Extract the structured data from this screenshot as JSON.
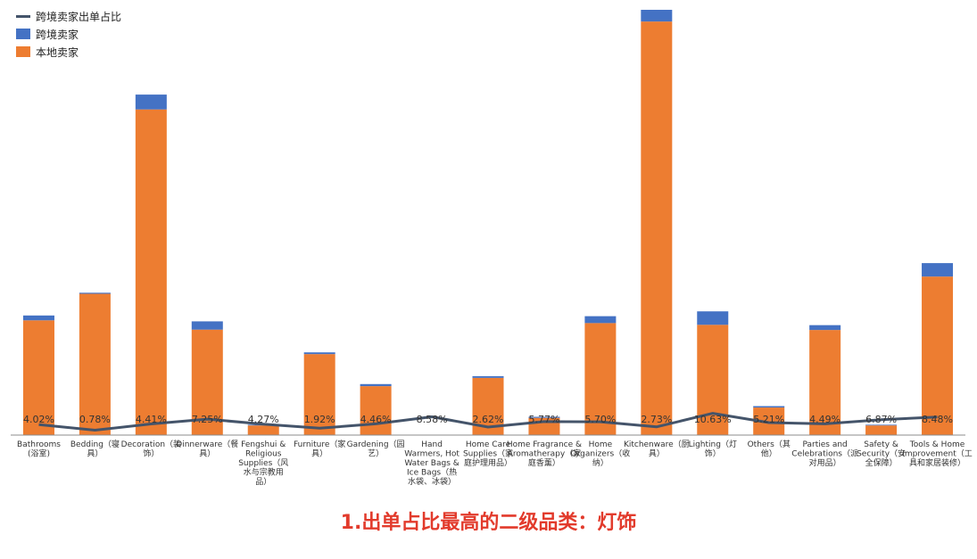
{
  "chart_data": {
    "type": "bar",
    "stacked": true,
    "categories": [
      "Bathrooms（浴室）",
      "Bedding（寝具）",
      "Decoration（装饰）",
      "Dinnerware（餐具）",
      "Fengshui & Religious Supplies（风水与宗教用品）",
      "Furniture（家具）",
      "Gardening（园艺）",
      "Hand Warmers, Hot Water Bags & Ice Bags（热水袋、冰袋）",
      "Home Care Supplies（家庭护理用品）",
      "Home Fragrance & Aromatherapy（家庭香薰）",
      "Home Organizers（收纳）",
      "Kitchenware（厨具）",
      "Lighting（灯饰）",
      "Others（其他）",
      "Parties and Celebrations（派对用品）",
      "Safety & Security（安全保障）",
      "Tools & Home Improvement（工具和家居装修）"
    ],
    "category_lines": [
      [
        "Bathrooms",
        "(浴室)"
      ],
      [
        "Bedding（寝",
        "具）"
      ],
      [
        "Decoration（装",
        "饰）"
      ],
      [
        "Dinnerware（餐",
        "具）"
      ],
      [
        "Fengshui &",
        "Religious",
        "Supplies（风",
        "水与宗教用",
        "品）"
      ],
      [
        "Furniture（家",
        "具）"
      ],
      [
        "Gardening（园",
        "艺）"
      ],
      [
        "Hand",
        "Warmers, Hot",
        "Water Bags &",
        "Ice Bags（热",
        "水袋、冰袋）"
      ],
      [
        "Home Care",
        "Supplies（家",
        "庭护理用品）"
      ],
      [
        "Home Fragrance &",
        "Aromatherapy（家",
        "庭香薰）"
      ],
      [
        "Home",
        "Organizers（收",
        "纳）"
      ],
      [
        "Kitchenware（厨",
        "具）"
      ],
      [
        "Lighting（灯",
        "饰）"
      ],
      [
        "Others（其",
        "他）"
      ],
      [
        "Parties and",
        "Celebrations（派",
        "对用品）"
      ],
      [
        "Safety &",
        "Security（安",
        "全保障）"
      ],
      [
        "Tools & Home",
        "Improvement（工",
        "具和家居装修）"
      ]
    ],
    "series": [
      {
        "name": "本地卖家",
        "color": "#ED7D31",
        "values": [
          3.33,
          4.1,
          9.45,
          3.06,
          0.28,
          2.35,
          1.42,
          0,
          1.66,
          0.5,
          3.25,
          12.0,
          3.2,
          0.8,
          3.05,
          0.28,
          4.6
        ]
      },
      {
        "name": "跨境卖家",
        "color": "#4472C4",
        "values": [
          0.14,
          0.03,
          0.43,
          0.24,
          0.02,
          0.05,
          0.06,
          0,
          0.05,
          0.03,
          0.2,
          0.34,
          0.39,
          0.04,
          0.14,
          0.02,
          0.39
        ]
      },
      {
        "name": "跨境卖家出单占比",
        "type": "line",
        "color": "#44546A",
        "values": [
          4.02,
          0.78,
          4.41,
          7.25,
          4.27,
          1.92,
          4.46,
          8.58,
          2.62,
          5.77,
          5.7,
          2.73,
          10.63,
          5.21,
          4.49,
          6.87,
          8.48
        ],
        "labels": [
          "4.02%",
          "0.78%",
          "4.41%",
          "7.25%",
          "4.27%",
          "1.92%",
          "4.46%",
          "8.58%",
          "2.62%",
          "5.77%",
          "5.70%",
          "2.73%",
          "10.63%",
          "5.21%",
          "4.49%",
          "6.87%",
          "8.48%"
        ]
      }
    ],
    "legend_position": "top-left",
    "grid": false
  },
  "legend": {
    "items": [
      {
        "label": "跨境卖家出单占比",
        "color": "#44546A",
        "kind": "line"
      },
      {
        "label": "跨境卖家",
        "color": "#4472C4",
        "kind": "box"
      },
      {
        "label": "本地卖家",
        "color": "#ED7D31",
        "kind": "box"
      }
    ]
  },
  "caption": "1.出单占比最高的二级品类：灯饰"
}
